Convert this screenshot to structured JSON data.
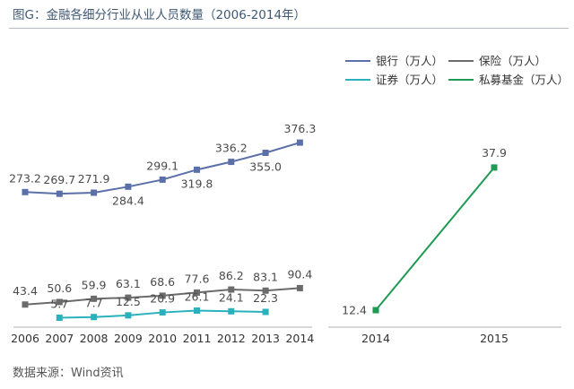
{
  "header": {
    "title": "图G：金融各细分行业从业人员数量（2006-2014年）"
  },
  "footer": {
    "source": "数据来源：Wind资讯"
  },
  "colors": {
    "bank": "#5b6fa8",
    "insurance": "#6b6b6b",
    "securities": "#2ab1bd",
    "private_fund": "#1e9a53"
  },
  "chart_data": [
    {
      "type": "line",
      "title": "",
      "x": [
        "2006",
        "2007",
        "2008",
        "2009",
        "2010",
        "2011",
        "2012",
        "2013",
        "2014"
      ],
      "series": [
        {
          "name": "银行（万人）",
          "key": "bank",
          "values": [
            273.2,
            269.7,
            271.9,
            284.4,
            299.1,
            319.8,
            336.2,
            355.0,
            376.3
          ]
        },
        {
          "name": "保险（万人）",
          "key": "insurance",
          "values": [
            43.4,
            50.6,
            59.9,
            63.1,
            68.6,
            77.6,
            86.2,
            83.1,
            90.4
          ]
        },
        {
          "name": "证券（万人）",
          "key": "securities",
          "values": [
            null,
            5.7,
            7.7,
            12.5,
            20.9,
            26.1,
            24.1,
            22.3,
            null
          ]
        }
      ],
      "data_labels": {
        "bank": [
          "273.2",
          "269.7",
          "271.9",
          "284.4",
          "299.1",
          "319.8",
          "336.2",
          "355.0",
          "376.3"
        ],
        "insurance": [
          "43.4",
          "50.6",
          "59.9",
          "63.1",
          "68.6",
          "77.6",
          "86.2",
          "83.1",
          "90.4"
        ],
        "securities": [
          "",
          "5.7",
          "7.7",
          "12.5",
          "20.9",
          "26.1",
          "24.1",
          "22.3",
          ""
        ]
      },
      "axis_break": true,
      "grid": false
    },
    {
      "type": "line",
      "title": "",
      "x": [
        "2014",
        "2015"
      ],
      "series": [
        {
          "name": "私募基金（万人）",
          "key": "private_fund",
          "values": [
            12.4,
            37.9
          ]
        }
      ],
      "data_labels": {
        "private_fund": [
          "12.4",
          "37.9"
        ]
      },
      "grid": false
    }
  ],
  "legend": {
    "placement": "top-right",
    "items": [
      {
        "label": "银行（万人）",
        "key": "bank"
      },
      {
        "label": "保险（万人）",
        "key": "insurance"
      },
      {
        "label": "证券（万人）",
        "key": "securities"
      },
      {
        "label": "私募基金（万人）",
        "key": "private_fund"
      }
    ]
  }
}
